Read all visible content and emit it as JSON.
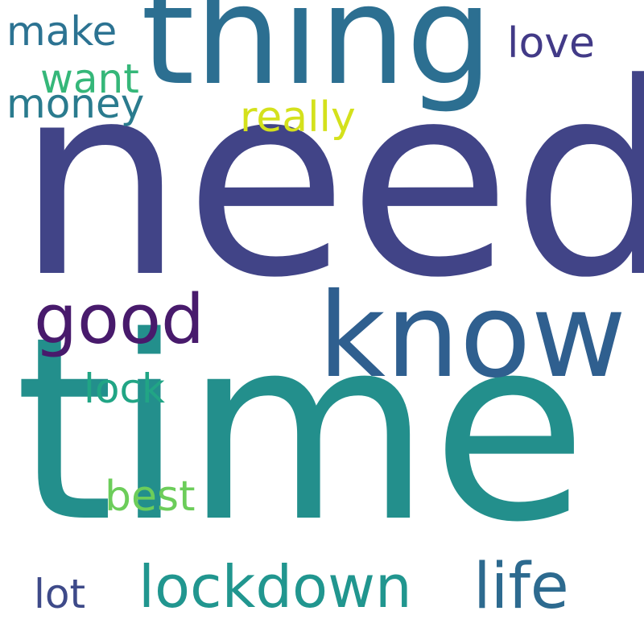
{
  "words": [
    {
      "id": "need",
      "text": "need",
      "weight": 1.0,
      "color": "#414487"
    },
    {
      "id": "time",
      "text": "time",
      "weight": 0.98,
      "color": "#238f8c"
    },
    {
      "id": "thing",
      "text": "thing",
      "weight": 0.52,
      "color": "#2c6f91"
    },
    {
      "id": "know",
      "text": "know",
      "weight": 0.44,
      "color": "#2f5f8f"
    },
    {
      "id": "good",
      "text": "good",
      "weight": 0.26,
      "color": "#481a6c"
    },
    {
      "id": "lockdown",
      "text": "lockdown",
      "weight": 0.22,
      "color": "#21968f"
    },
    {
      "id": "life",
      "text": "life",
      "weight": 0.22,
      "color": "#2d6a8f"
    },
    {
      "id": "love",
      "text": "love",
      "weight": 0.15,
      "color": "#423a87"
    },
    {
      "id": "make",
      "text": "make",
      "weight": 0.14,
      "color": "#2c7392"
    },
    {
      "id": "money",
      "text": "money",
      "weight": 0.14,
      "color": "#2a7b8e"
    },
    {
      "id": "want",
      "text": "want",
      "weight": 0.14,
      "color": "#35b779"
    },
    {
      "id": "really",
      "text": "really",
      "weight": 0.14,
      "color": "#d4e11c"
    },
    {
      "id": "lock",
      "text": "lock",
      "weight": 0.14,
      "color": "#21a585"
    },
    {
      "id": "best",
      "text": "best",
      "weight": 0.14,
      "color": "#6ccd5a"
    },
    {
      "id": "lot",
      "text": "lot",
      "weight": 0.14,
      "color": "#3e4a89"
    }
  ]
}
